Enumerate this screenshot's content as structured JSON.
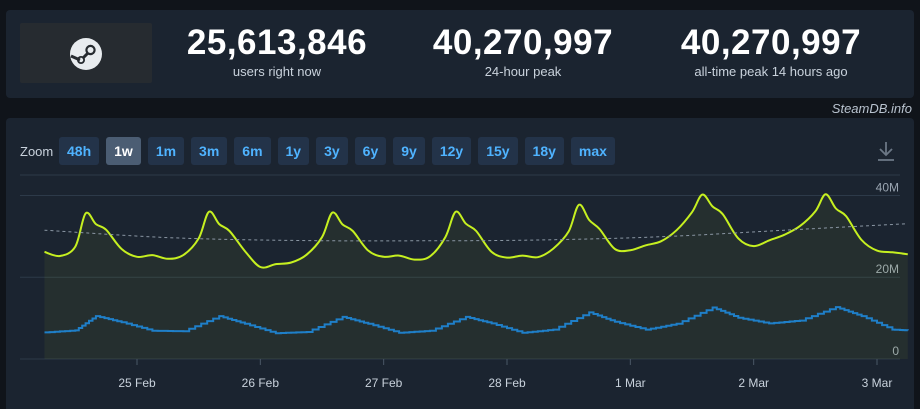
{
  "stats": [
    {
      "value": "25,613,846",
      "label": "users right now"
    },
    {
      "value": "40,270,997",
      "label": "24-hour peak"
    },
    {
      "value": "40,270,997",
      "label": "all-time peak 14 hours ago"
    }
  ],
  "credit": "SteamDB.info",
  "zoom": {
    "label": "Zoom",
    "options": [
      "48h",
      "1w",
      "1m",
      "3m",
      "6m",
      "1y",
      "3y",
      "6y",
      "9y",
      "12y",
      "15y",
      "18y",
      "max"
    ],
    "active": "1w"
  },
  "icons": {
    "logo": "steam-logo-icon",
    "download": "download-icon"
  },
  "colors": {
    "users": "#c6f020",
    "in_game": "#1f7fc8",
    "trend": "#8a96a3",
    "active_button": "#4b5d73",
    "button_text": "#4fb3ff"
  },
  "chart_data": {
    "type": "line",
    "title": "",
    "xlabel": "",
    "ylabel": "",
    "x_ticks": [
      "25 Feb",
      "26 Feb",
      "27 Feb",
      "28 Feb",
      "1 Mar",
      "2 Mar",
      "3 Mar"
    ],
    "y_ticks": [
      "0",
      "20M",
      "40M"
    ],
    "ylim": [
      0,
      45000000
    ],
    "grid": true,
    "series": [
      {
        "name": "",
        "x": [
          "24 Feb 06:00",
          "24 Feb 09:00",
          "24 Feb 12:00",
          "24 Feb 14:00",
          "24 Feb 16:00",
          "24 Feb 18:00",
          "24 Feb 21:00",
          "25 Feb 00:00",
          "25 Feb 03:00",
          "25 Feb 06:00",
          "25 Feb 09:00",
          "25 Feb 12:00",
          "25 Feb 14:00",
          "25 Feb 16:00",
          "25 Feb 18:00",
          "25 Feb 21:00",
          "26 Feb 00:00",
          "26 Feb 03:00",
          "26 Feb 06:00",
          "26 Feb 09:00",
          "26 Feb 12:00",
          "26 Feb 14:00",
          "26 Feb 16:00",
          "26 Feb 18:00",
          "26 Feb 21:00",
          "27 Feb 00:00",
          "27 Feb 03:00",
          "27 Feb 06:00",
          "27 Feb 09:00",
          "27 Feb 12:00",
          "27 Feb 14:00",
          "27 Feb 16:00",
          "27 Feb 18:00",
          "27 Feb 21:00",
          "28 Feb 00:00",
          "28 Feb 03:00",
          "28 Feb 06:00",
          "28 Feb 09:00",
          "28 Feb 12:00",
          "28 Feb 14:00",
          "28 Feb 16:00",
          "28 Feb 18:00",
          "28 Feb 21:00",
          "1 Mar 00:00",
          "1 Mar 03:00",
          "1 Mar 06:00",
          "1 Mar 09:00",
          "1 Mar 12:00",
          "1 Mar 14:00",
          "1 Mar 16:00",
          "1 Mar 18:00",
          "1 Mar 21:00",
          "2 Mar 00:00",
          "2 Mar 03:00",
          "2 Mar 06:00",
          "2 Mar 09:00",
          "2 Mar 12:00",
          "2 Mar 14:00",
          "2 Mar 16:00",
          "2 Mar 18:00",
          "2 Mar 21:00",
          "3 Mar 00:00",
          "3 Mar 03:00",
          "3 Mar 06:00"
        ],
        "values": [
          26200000,
          25200000,
          27500000,
          35600000,
          33000000,
          31600000,
          26900000,
          25000000,
          25400000,
          24500000,
          25400000,
          29500000,
          36000000,
          33000000,
          31300000,
          26400000,
          22500000,
          23200000,
          23600000,
          25500000,
          29800000,
          35800000,
          32900000,
          31300000,
          26500000,
          25000000,
          25300000,
          24300000,
          25100000,
          29800000,
          36000000,
          33100000,
          31300000,
          26200000,
          24800000,
          25300000,
          24900000,
          27000000,
          31200000,
          37700000,
          34000000,
          31800000,
          26900000,
          26600000,
          27800000,
          28800000,
          31500000,
          35900000,
          40200000,
          37300000,
          35400000,
          29500000,
          27600000,
          29000000,
          30400000,
          32500000,
          36100000,
          40270997,
          36800000,
          34900000,
          29100000,
          26500000,
          26100000,
          25613846
        ]
      },
      {
        "name": "",
        "x": [
          "24 Feb 06:00",
          "24 Feb 12:00",
          "24 Feb 16:00",
          "24 Feb 21:00",
          "25 Feb 03:00",
          "25 Feb 09:00",
          "25 Feb 16:00",
          "25 Feb 21:00",
          "26 Feb 03:00",
          "26 Feb 09:00",
          "26 Feb 16:00",
          "26 Feb 21:00",
          "27 Feb 03:00",
          "27 Feb 09:00",
          "27 Feb 16:00",
          "27 Feb 21:00",
          "28 Feb 03:00",
          "28 Feb 09:00",
          "28 Feb 16:00",
          "28 Feb 21:00",
          "1 Mar 03:00",
          "1 Mar 09:00",
          "1 Mar 16:00",
          "1 Mar 21:00",
          "2 Mar 03:00",
          "2 Mar 09:00",
          "2 Mar 16:00",
          "2 Mar 21:00",
          "3 Mar 03:00",
          "3 Mar 06:00"
        ],
        "values": [
          6500000,
          7000000,
          10500000,
          9000000,
          6900000,
          6800000,
          10500000,
          8600000,
          6300000,
          6600000,
          10300000,
          8600000,
          6400000,
          6900000,
          10300000,
          8700000,
          6400000,
          7200000,
          11400000,
          9100000,
          7200000,
          8600000,
          12600000,
          10100000,
          8700000,
          9400000,
          12700000,
          10500000,
          7200000,
          7000000
        ]
      },
      {
        "name": "",
        "x": [
          "24 Feb 06:00",
          "25 Feb 06:00",
          "26 Feb 06:00",
          "27 Feb 06:00",
          "28 Feb 06:00",
          "1 Mar 06:00",
          "2 Mar 06:00",
          "3 Mar 06:00"
        ],
        "values": [
          31500000,
          29700000,
          29000000,
          28900000,
          29100000,
          29900000,
          31500000,
          33100000
        ]
      }
    ]
  }
}
